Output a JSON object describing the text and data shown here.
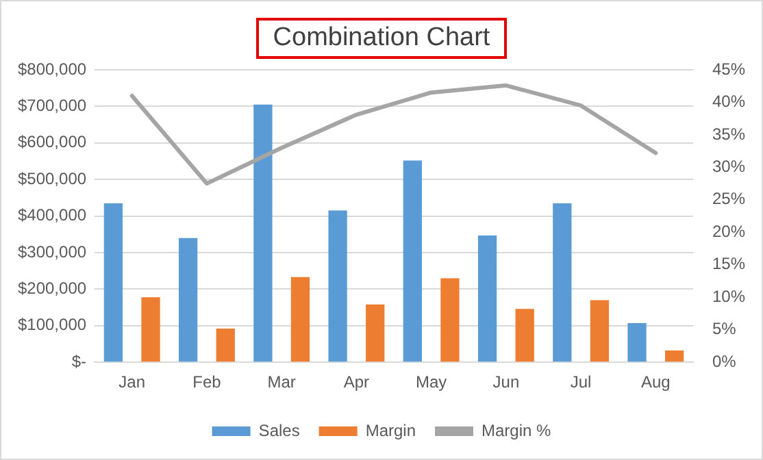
{
  "chart_data": {
    "type": "bar",
    "title": "Combination Chart",
    "categories": [
      "Jan",
      "Feb",
      "Mar",
      "Apr",
      "May",
      "Jun",
      "Jul",
      "Aug"
    ],
    "series": [
      {
        "name": "Sales",
        "color": "#5b9bd5",
        "values": [
          435000,
          340000,
          705000,
          415000,
          552000,
          347000,
          435000,
          107000
        ]
      },
      {
        "name": "Margin",
        "color": "#ed7d31",
        "values": [
          178000,
          92000,
          233000,
          158000,
          230000,
          146000,
          170000,
          32000
        ]
      },
      {
        "name": "Margin %",
        "type": "line",
        "axis": "y2",
        "color": "#a5a5a5",
        "values": [
          41,
          27.5,
          33,
          38.1,
          41.5,
          42.6,
          39.5,
          32.2
        ]
      }
    ],
    "ylim": [
      0,
      800000
    ],
    "yticks": [
      {
        "value": 0,
        "label": "$-"
      },
      {
        "value": 100000,
        "label": "$100,000"
      },
      {
        "value": 200000,
        "label": "$200,000"
      },
      {
        "value": 300000,
        "label": "$300,000"
      },
      {
        "value": 400000,
        "label": "$400,000"
      },
      {
        "value": 500000,
        "label": "$500,000"
      },
      {
        "value": 600000,
        "label": "$600,000"
      },
      {
        "value": 700000,
        "label": "$700,000"
      },
      {
        "value": 800000,
        "label": "$800,000"
      }
    ],
    "y2lim": [
      0,
      45
    ],
    "y2ticks": [
      {
        "value": 0,
        "label": "0%"
      },
      {
        "value": 5,
        "label": "5%"
      },
      {
        "value": 10,
        "label": "10%"
      },
      {
        "value": 15,
        "label": "15%"
      },
      {
        "value": 20,
        "label": "20%"
      },
      {
        "value": 25,
        "label": "25%"
      },
      {
        "value": 30,
        "label": "30%"
      },
      {
        "value": 35,
        "label": "35%"
      },
      {
        "value": 40,
        "label": "40%"
      },
      {
        "value": 45,
        "label": "45%"
      }
    ],
    "grid": "y",
    "legend": "bottom",
    "marker": "none",
    "line_style": "solid"
  }
}
